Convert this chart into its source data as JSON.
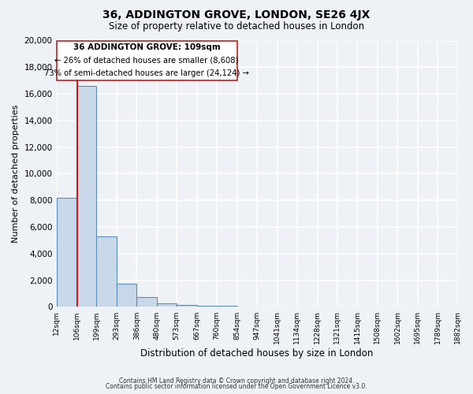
{
  "title": "36, ADDINGTON GROVE, LONDON, SE26 4JX",
  "subtitle": "Size of property relative to detached houses in London",
  "xlabel": "Distribution of detached houses by size in London",
  "ylabel": "Number of detached properties",
  "bin_labels": [
    "12sqm",
    "106sqm",
    "199sqm",
    "293sqm",
    "386sqm",
    "480sqm",
    "573sqm",
    "667sqm",
    "760sqm",
    "854sqm",
    "947sqm",
    "1041sqm",
    "1134sqm",
    "1228sqm",
    "1321sqm",
    "1415sqm",
    "1508sqm",
    "1602sqm",
    "1695sqm",
    "1789sqm",
    "1882sqm"
  ],
  "bar_heights": [
    8200,
    16600,
    5300,
    1750,
    750,
    275,
    175,
    100,
    75,
    0,
    0,
    0,
    0,
    0,
    0,
    0,
    0,
    0,
    0,
    0
  ],
  "ylim": [
    0,
    20000
  ],
  "yticks": [
    0,
    2000,
    4000,
    6000,
    8000,
    10000,
    12000,
    14000,
    16000,
    18000,
    20000
  ],
  "bar_color": "#c8d8e8",
  "bar_edge_color": "#5b8db8",
  "property_line_x": 109,
  "property_line_color": "#bb2222",
  "annotation_title": "36 ADDINGTON GROVE: 109sqm",
  "annotation_line1": "← 26% of detached houses are smaller (8,608)",
  "annotation_line2": "73% of semi-detached houses are larger (24,124) →",
  "annotation_box_color": "#ffffff",
  "annotation_box_edge": "#bb2222",
  "background_color": "#eef2f7",
  "grid_color": "#ffffff",
  "footer1": "Contains HM Land Registry data © Crown copyright and database right 2024.",
  "footer2": "Contains public sector information licensed under the Open Government Licence v3.0."
}
